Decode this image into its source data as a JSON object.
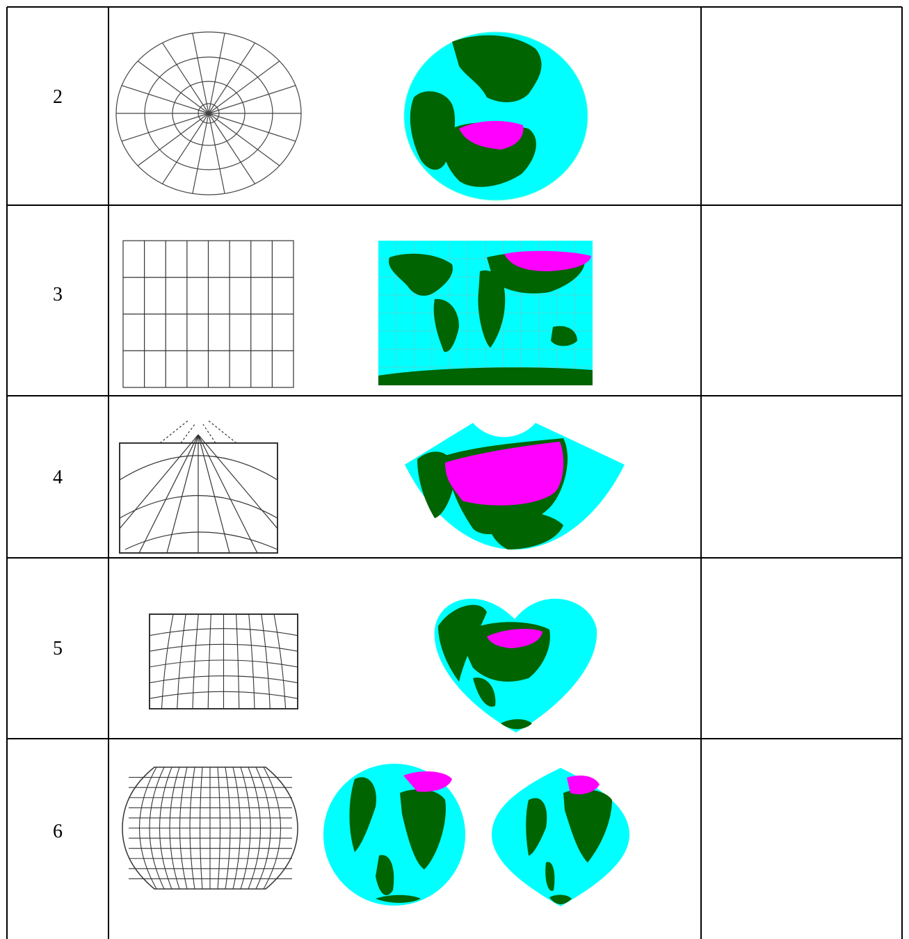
{
  "rows": [
    {
      "label": "2",
      "projection": "azimuthal",
      "notes": ""
    },
    {
      "label": "3",
      "projection": "cylindrical",
      "notes": ""
    },
    {
      "label": "4",
      "projection": "conic",
      "notes": ""
    },
    {
      "label": "5",
      "projection": "cordiform",
      "notes": ""
    },
    {
      "label": "6",
      "projection": "pseudocylindrical",
      "notes": ""
    }
  ],
  "colors": {
    "ocean": "#00FFFF",
    "land": "#006400",
    "highlight": "#FF00FF",
    "grid": "#000000"
  }
}
